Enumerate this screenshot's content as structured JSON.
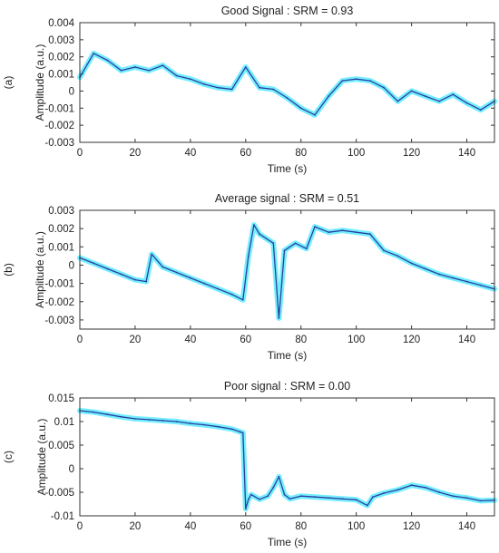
{
  "chart_data": [
    {
      "type": "line",
      "panel_label": "(a)",
      "title": "Good Signal : SRM = 0.93",
      "xlabel": "Time (s)",
      "ylabel": "Amplitude (a.u.)",
      "xlim": [
        0,
        150
      ],
      "ylim": [
        -0.003,
        0.004
      ],
      "xticks": [
        0,
        20,
        40,
        60,
        80,
        100,
        120,
        140
      ],
      "xtick_labels": [
        "0",
        "20",
        "40",
        "60",
        "80",
        "100",
        "120",
        "140"
      ],
      "yticks": [
        -0.003,
        -0.002,
        -0.001,
        0,
        0.001,
        0.002,
        0.003,
        0.004
      ],
      "ytick_labels": [
        "-0.003",
        "-0.002",
        "-0.001",
        "0",
        "0.001",
        "0.002",
        "0.003",
        "0.004"
      ],
      "line_color": "#2b3f9e",
      "fill_color": "#00e0ff",
      "series": [
        {
          "x": [
            0,
            5,
            10,
            15,
            20,
            25,
            30,
            35,
            40,
            45,
            50,
            55,
            60,
            65,
            70,
            75,
            80,
            85,
            90,
            95,
            100,
            105,
            110,
            115,
            120,
            125,
            130,
            135,
            140,
            145,
            150
          ],
          "values": [
            0.0008,
            0.0022,
            0.0018,
            0.0012,
            0.0014,
            0.0012,
            0.0015,
            0.0009,
            0.0007,
            0.0004,
            0.0002,
            0.0001,
            0.0014,
            0.0002,
            0.0001,
            -0.0004,
            -0.001,
            -0.0014,
            -0.0003,
            0.0006,
            0.0007,
            0.0006,
            0.0002,
            -0.0006,
            0.0,
            -0.0003,
            -0.0006,
            -0.0002,
            -0.0007,
            -0.0011,
            -0.0006
          ]
        }
      ]
    },
    {
      "type": "line",
      "panel_label": "(b)",
      "title": "Average signal : SRM = 0.51",
      "xlabel": "Time (s)",
      "ylabel": "Amplitude (a.u.)",
      "xlim": [
        0,
        150
      ],
      "ylim": [
        -0.0035,
        0.003
      ],
      "xticks": [
        0,
        20,
        40,
        60,
        80,
        100,
        120,
        140
      ],
      "xtick_labels": [
        "0",
        "20",
        "40",
        "60",
        "80",
        "100",
        "120",
        "140"
      ],
      "yticks": [
        -0.003,
        -0.002,
        -0.001,
        0,
        0.001,
        0.002,
        0.003
      ],
      "ytick_labels": [
        "-0.003",
        "-0.002",
        "-0.001",
        "0",
        "0.001",
        "0.002",
        "0.003"
      ],
      "line_color": "#2b3f9e",
      "fill_color": "#00e0ff",
      "series": [
        {
          "x": [
            0,
            5,
            10,
            15,
            20,
            24,
            26,
            30,
            35,
            40,
            45,
            50,
            55,
            59,
            61,
            63,
            65,
            70,
            72,
            74,
            78,
            82,
            85,
            90,
            95,
            100,
            105,
            110,
            115,
            120,
            125,
            130,
            135,
            140,
            145,
            150
          ],
          "values": [
            0.0004,
            0.0001,
            -0.0002,
            -0.0005,
            -0.0008,
            -0.0009,
            0.0006,
            -0.0001,
            -0.0004,
            -0.0007,
            -0.001,
            -0.0013,
            -0.0016,
            -0.0019,
            0.0005,
            0.0022,
            0.0017,
            0.0012,
            -0.0029,
            0.0008,
            0.0012,
            0.0009,
            0.0021,
            0.0018,
            0.0019,
            0.0018,
            0.0017,
            0.0008,
            0.0005,
            0.0001,
            -0.0002,
            -0.0005,
            -0.0007,
            -0.0009,
            -0.0011,
            -0.0013
          ]
        }
      ]
    },
    {
      "type": "line",
      "panel_label": "(c)",
      "title": "Poor signal : SRM = 0.00",
      "xlabel": "Time (s)",
      "ylabel": "Amplitude (a.u.)",
      "xlim": [
        0,
        150
      ],
      "ylim": [
        -0.01,
        0.015
      ],
      "xticks": [
        0,
        20,
        40,
        60,
        80,
        100,
        120,
        140
      ],
      "xtick_labels": [
        "0",
        "20",
        "40",
        "60",
        "80",
        "100",
        "120",
        "140"
      ],
      "yticks": [
        -0.01,
        -0.005,
        0,
        0.005,
        0.01,
        0.015
      ],
      "ytick_labels": [
        "-0.01",
        "-0.005",
        "0",
        "0.005",
        "0.01",
        "0.015"
      ],
      "line_color": "#2b3f9e",
      "fill_color": "#00e0ff",
      "series": [
        {
          "x": [
            0,
            5,
            10,
            15,
            20,
            25,
            30,
            35,
            40,
            45,
            50,
            55,
            58,
            59,
            60,
            61,
            62,
            65,
            68,
            70,
            72,
            74,
            76,
            80,
            85,
            90,
            95,
            100,
            104,
            106,
            110,
            115,
            120,
            125,
            130,
            135,
            140,
            145,
            150
          ],
          "values": [
            0.0123,
            0.012,
            0.0115,
            0.011,
            0.0106,
            0.0104,
            0.0102,
            0.01,
            0.0096,
            0.0093,
            0.0089,
            0.0084,
            0.0078,
            0.0076,
            -0.0085,
            -0.0065,
            -0.0055,
            -0.0065,
            -0.0058,
            -0.004,
            -0.0017,
            -0.0055,
            -0.0064,
            -0.0058,
            -0.006,
            -0.0062,
            -0.0064,
            -0.0066,
            -0.0078,
            -0.006,
            -0.0052,
            -0.0045,
            -0.0035,
            -0.004,
            -0.005,
            -0.0058,
            -0.0062,
            -0.0068,
            -0.0067
          ]
        }
      ]
    }
  ]
}
